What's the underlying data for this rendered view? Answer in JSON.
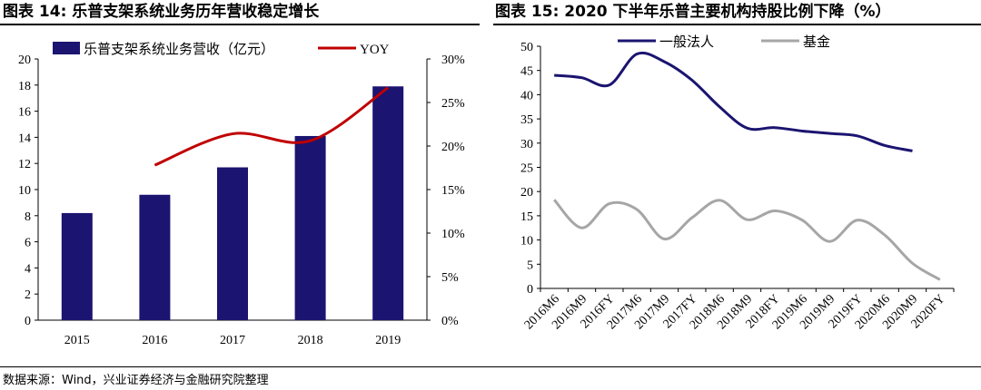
{
  "left_chart_title": "图表 14: 乐普支架系统业务历年营收稳定增长",
  "right_chart_title": "图表 15: 2020 下半年乐普主要机构持股比例下降（%）",
  "source_note": "数据来源：Wind，兴业证券经济与金融研究院整理",
  "colors": {
    "bar": "#1b1470",
    "yoy": "#c00000",
    "legal_person": "#1b1470",
    "fund": "#a6a6a6"
  },
  "chart_data": [
    {
      "type": "bar",
      "categories": [
        "2015",
        "2016",
        "2017",
        "2018",
        "2019"
      ],
      "series": [
        {
          "name": "乐普支架系统业务营收（亿元）",
          "type": "bar",
          "axis": "left",
          "values": [
            8.2,
            9.6,
            11.7,
            14.1,
            17.9
          ]
        },
        {
          "name": "YOY",
          "type": "line",
          "axis": "right",
          "values": [
            null,
            17.8,
            21.4,
            20.6,
            26.7
          ]
        }
      ],
      "ylim": [
        0,
        20
      ],
      "yticks": [
        0,
        2,
        4,
        6,
        8,
        10,
        12,
        14,
        16,
        18,
        20
      ],
      "y2lim": [
        0,
        30
      ],
      "y2ticks": [
        "0%",
        "5%",
        "10%",
        "15%",
        "20%",
        "25%",
        "30%"
      ],
      "legend": "top",
      "grid": false
    },
    {
      "type": "line",
      "categories": [
        "2016M6",
        "2016M9",
        "2016FY",
        "2017M6",
        "2017M9",
        "2017FY",
        "2018M6",
        "2018M9",
        "2018FY",
        "2019M6",
        "2019M9",
        "2019FY",
        "2020M6",
        "2020M9",
        "2020FY"
      ],
      "series": [
        {
          "name": "一般法人",
          "values": [
            44.0,
            43.5,
            42.0,
            48.4,
            46.8,
            43.0,
            37.5,
            33.1,
            33.2,
            32.5,
            32.0,
            31.5,
            29.5,
            28.4,
            null
          ]
        },
        {
          "name": "基金",
          "values": [
            18.3,
            12.5,
            17.5,
            16.3,
            10.2,
            14.6,
            18.2,
            14.2,
            16.0,
            14.1,
            9.7,
            14.1,
            11.0,
            5.2,
            1.8
          ]
        }
      ],
      "ylim": [
        0,
        50
      ],
      "yticks": [
        0,
        5,
        10,
        15,
        20,
        25,
        30,
        35,
        40,
        45,
        50
      ],
      "legend": "top",
      "grid": false
    }
  ]
}
